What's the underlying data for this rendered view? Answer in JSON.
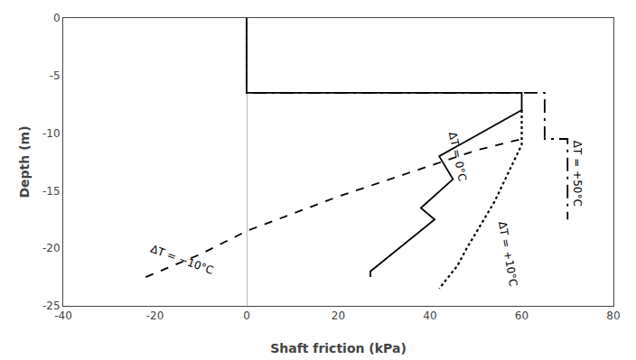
{
  "chart_data": {
    "type": "line",
    "xlabel": "Shaft friction (kPa)",
    "ylabel": "Depth (m)",
    "xlim": [
      -40,
      80
    ],
    "ylim": [
      -25,
      0
    ],
    "xticks": [
      -40,
      -20,
      0,
      20,
      40,
      60,
      80
    ],
    "yticks": [
      0,
      -5,
      -10,
      -15,
      -20,
      -25
    ],
    "grid": false,
    "series": [
      {
        "color": "#000000",
        "line_style": "solid",
        "x": [
          0,
          0,
          60,
          60,
          42,
          45,
          38,
          41,
          27,
          27
        ],
        "values": [
          0,
          -6.5,
          -6.5,
          -8.0,
          -12.0,
          -14.0,
          -16.5,
          -17.5,
          -22.0,
          -22.5
        ]
      },
      {
        "color": "#000000",
        "line_style": "dashed",
        "x": [
          -22,
          -10,
          0,
          10,
          20,
          35,
          50,
          60
        ],
        "values": [
          -22.5,
          -20.5,
          -18.5,
          -17.0,
          -15.5,
          -13.5,
          -11.5,
          -10.5
        ]
      },
      {
        "color": "#000000",
        "line_style": "dotted",
        "x": [
          60,
          60,
          57,
          54,
          51,
          48,
          46,
          44,
          42
        ],
        "values": [
          -8.0,
          -11.0,
          -13.5,
          -16.0,
          -18.0,
          -20.0,
          -21.5,
          -22.5,
          -23.5
        ]
      },
      {
        "color": "#000000",
        "line_style": "dashdot",
        "x": [
          0,
          0,
          65,
          65,
          70,
          70
        ],
        "values": [
          0,
          -6.5,
          -6.5,
          -10.5,
          -10.5,
          -17.5
        ]
      }
    ],
    "annotations": [
      {
        "text": "ΔT = 0°C",
        "x": 43,
        "y": -12.0
      },
      {
        "text": "ΔT = −10°C",
        "x": -14,
        "y": -21.0
      },
      {
        "text": "ΔT = +10°C",
        "x": 54,
        "y": -20.5
      },
      {
        "text": "ΔT = +50°C",
        "x": 72,
        "y": -13.5
      }
    ]
  }
}
